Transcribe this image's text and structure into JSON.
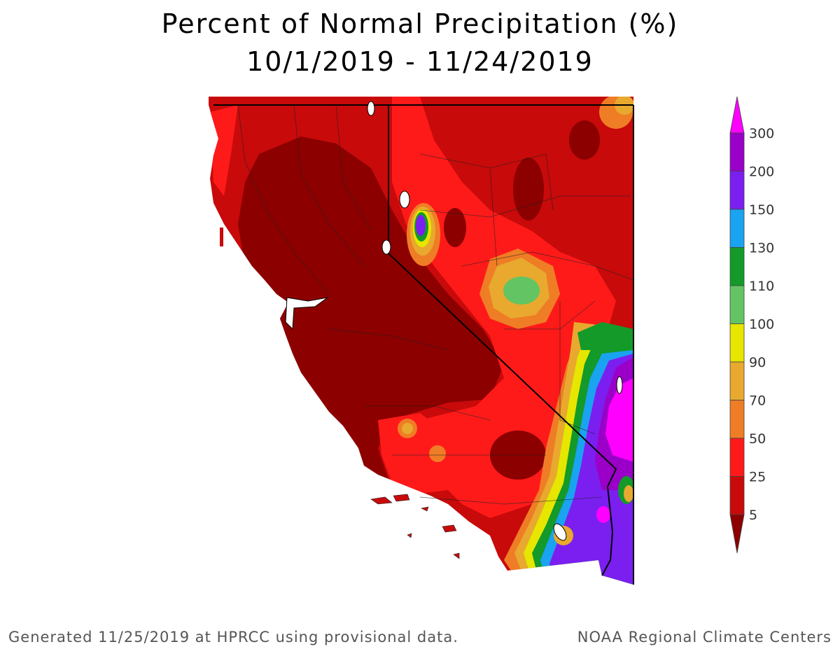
{
  "title": {
    "line1": "Percent of Normal Precipitation (%)",
    "line2": "10/1/2019 - 11/24/2019"
  },
  "legend": {
    "labels": [
      "300",
      "200",
      "150",
      "130",
      "110",
      "100",
      "90",
      "70",
      "50",
      "25",
      "5"
    ],
    "colors": [
      "#ff00ff",
      "#9a00c8",
      "#7a1ff0",
      "#1aa3f0",
      "#139a29",
      "#63c463",
      "#e6e600",
      "#e8a92e",
      "#ef7d25",
      "#ff1a1a",
      "#c80a0a",
      "#8c0000"
    ]
  },
  "footer": {
    "left": "Generated 11/25/2019 at HPRCC using provisional data.",
    "right": "NOAA Regional Climate Centers"
  }
}
